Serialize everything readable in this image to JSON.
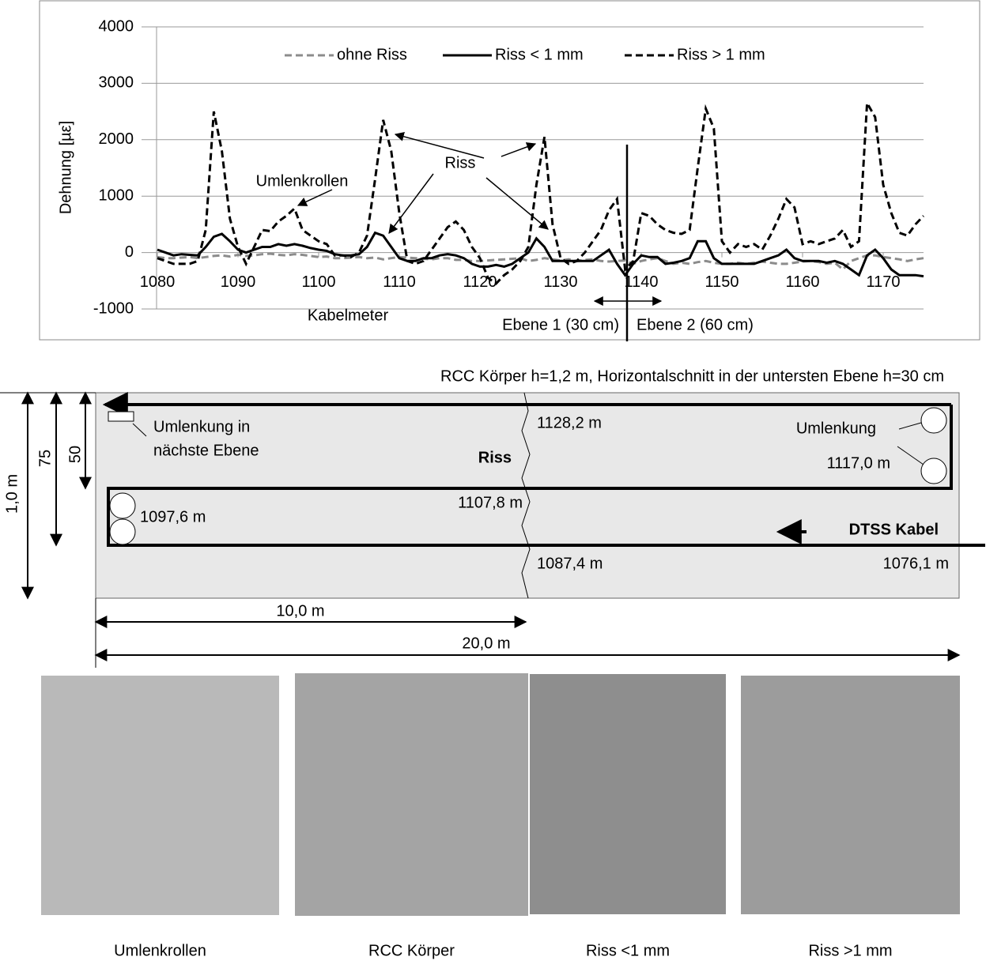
{
  "chart_data": {
    "type": "line",
    "x_label": "Kabelmeter",
    "y_label": "Dehnung [µε]",
    "x": [
      1080,
      1081,
      1082,
      1083,
      1084,
      1085,
      1086,
      1087,
      1088,
      1089,
      1090,
      1091,
      1092,
      1093,
      1094,
      1095,
      1096,
      1097,
      1098,
      1099,
      1100,
      1101,
      1102,
      1103,
      1104,
      1105,
      1106,
      1107,
      1108,
      1109,
      1110,
      1111,
      1112,
      1113,
      1114,
      1115,
      1116,
      1117,
      1118,
      1119,
      1120,
      1121,
      1122,
      1123,
      1124,
      1125,
      1126,
      1127,
      1128,
      1129,
      1130,
      1131,
      1132,
      1133,
      1134,
      1135,
      1136,
      1137,
      1138,
      1139,
      1140,
      1141,
      1142,
      1143,
      1144,
      1145,
      1146,
      1147,
      1148,
      1149,
      1150,
      1151,
      1152,
      1153,
      1154,
      1155,
      1156,
      1157,
      1158,
      1159,
      1160,
      1161,
      1162,
      1163,
      1164,
      1165,
      1166,
      1167,
      1168,
      1169,
      1170,
      1171,
      1172,
      1173,
      1174,
      1175
    ],
    "series": [
      {
        "name": "ohne Riss",
        "color": "#8c8c8c",
        "style": "dashed",
        "values": [
          -80,
          -100,
          -100,
          -90,
          -80,
          -100,
          -80,
          -60,
          -50,
          -70,
          -40,
          -60,
          -50,
          -30,
          -20,
          -40,
          -50,
          -30,
          -40,
          -60,
          -80,
          -70,
          -100,
          -100,
          -90,
          -80,
          -100,
          -90,
          -120,
          -100,
          -80,
          -90,
          -100,
          -110,
          -120,
          -100,
          -100,
          -130,
          -130,
          -150,
          -150,
          -140,
          -130,
          -120,
          -110,
          -100,
          -150,
          -130,
          -100,
          -120,
          -140,
          -120,
          -150,
          -130,
          -120,
          -150,
          -160,
          -150,
          -140,
          -200,
          -150,
          -120,
          -100,
          -150,
          -200,
          -180,
          -200,
          -170,
          -150,
          -180,
          -200,
          -200,
          -180,
          -200,
          -180,
          -160,
          -180,
          -200,
          -200,
          -180,
          -160,
          -150,
          -170,
          -200,
          -180,
          -300,
          -150,
          -100,
          -50,
          -50,
          -80,
          -100,
          -120,
          -150,
          -120,
          -100
        ]
      },
      {
        "name": "Riss < 1 mm",
        "color": "#000000",
        "style": "solid",
        "values": [
          50,
          0,
          -50,
          -30,
          -40,
          -50,
          100,
          280,
          330,
          200,
          50,
          0,
          50,
          100,
          100,
          150,
          120,
          150,
          120,
          80,
          50,
          30,
          -30,
          -50,
          -50,
          -30,
          100,
          350,
          300,
          100,
          -100,
          -150,
          -150,
          -100,
          -100,
          -50,
          -30,
          -50,
          -100,
          -200,
          -250,
          -250,
          -220,
          -250,
          -200,
          -100,
          0,
          250,
          100,
          -150,
          -150,
          -150,
          -150,
          -150,
          -150,
          -50,
          50,
          -200,
          -400,
          -200,
          -50,
          -80,
          -80,
          -200,
          -180,
          -150,
          -100,
          200,
          200,
          -100,
          -200,
          -200,
          -200,
          -200,
          -200,
          -150,
          -100,
          -50,
          50,
          -100,
          -150,
          -150,
          -150,
          -180,
          -150,
          -200,
          -300,
          -400,
          -50,
          50,
          -100,
          -300,
          -400,
          -400,
          -400,
          -420
        ]
      },
      {
        "name": "Riss > 1 mm",
        "color": "#000000",
        "style": "dashed",
        "values": [
          -100,
          -150,
          -200,
          -200,
          -200,
          -150,
          400,
          2500,
          1800,
          600,
          100,
          -200,
          100,
          400,
          380,
          550,
          650,
          780,
          400,
          300,
          200,
          150,
          -50,
          -50,
          -80,
          0,
          300,
          1300,
          2350,
          1800,
          700,
          -150,
          -200,
          -150,
          50,
          250,
          450,
          550,
          400,
          100,
          -100,
          -450,
          -550,
          -400,
          -300,
          -150,
          100,
          1200,
          2050,
          500,
          -100,
          -200,
          -150,
          0,
          200,
          400,
          750,
          950,
          -300,
          -150,
          700,
          650,
          500,
          400,
          350,
          330,
          400,
          1500,
          2550,
          2200,
          200,
          0,
          150,
          100,
          150,
          50,
          300,
          600,
          950,
          800,
          150,
          200,
          150,
          200,
          250,
          400,
          100,
          200,
          2650,
          2400,
          1200,
          700,
          350,
          300,
          500,
          650
        ]
      }
    ],
    "xlim": [
      1080,
      1175
    ],
    "xticks": [
      1080,
      1090,
      1100,
      1110,
      1120,
      1130,
      1140,
      1150,
      1160,
      1170
    ],
    "ylim": [
      -1000,
      4000
    ],
    "yticks": [
      -1000,
      0,
      1000,
      2000,
      3000,
      4000
    ],
    "grid": true,
    "legend": "top",
    "annotations": [
      "Riss",
      "Umlenkrollen",
      "Ebene 1 (30 cm)",
      "Ebene 2 (60 cm)"
    ]
  },
  "diagram": {
    "title": "RCC Körper h=1,2 m, Horizontalschnitt in der untersten Ebene h=30 cm",
    "labels": [
      "Umlenkung in",
      "nächste Ebene",
      "Riss",
      "1128,2 m",
      "Umlenkung",
      "1117,0 m",
      "1107,8 m",
      "1097,6 m",
      "DTSS Kabel",
      "1087,4 m",
      "1076,1 m"
    ],
    "dimensions": [
      "1,0 m",
      "75",
      "50",
      "10,0 m",
      "20,0 m"
    ]
  },
  "photos": [
    "Umlenkrollen",
    "RCC Körper",
    "Riss <1 mm",
    "Riss >1 mm"
  ]
}
